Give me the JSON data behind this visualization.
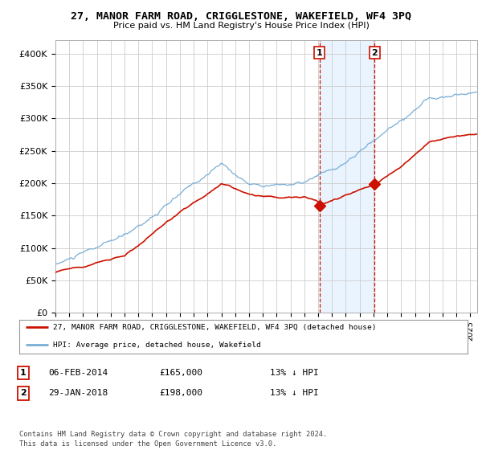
{
  "title": "27, MANOR FARM ROAD, CRIGGLESTONE, WAKEFIELD, WF4 3PQ",
  "subtitle": "Price paid vs. HM Land Registry's House Price Index (HPI)",
  "ylim": [
    0,
    420000
  ],
  "yticks": [
    0,
    50000,
    100000,
    150000,
    200000,
    250000,
    300000,
    350000,
    400000
  ],
  "ytick_labels": [
    "£0",
    "£50K",
    "£100K",
    "£150K",
    "£200K",
    "£250K",
    "£300K",
    "£350K",
    "£400K"
  ],
  "background_color": "#ffffff",
  "plot_bg_color": "#ffffff",
  "grid_color": "#cccccc",
  "hpi_color": "#7aaed6",
  "price_color": "#cc1100",
  "sale1_date": 2014.09,
  "sale1_price": 165000,
  "sale1_label": "1",
  "sale2_date": 2018.08,
  "sale2_price": 198000,
  "sale2_label": "2",
  "legend_line1": "27, MANOR FARM ROAD, CRIGGLESTONE, WAKEFIELD, WF4 3PQ (detached house)",
  "legend_line2": "HPI: Average price, detached house, Wakefield",
  "table_row1": [
    "1",
    "06-FEB-2014",
    "£165,000",
    "13% ↓ HPI"
  ],
  "table_row2": [
    "2",
    "29-JAN-2018",
    "£198,000",
    "13% ↓ HPI"
  ],
  "footnote": "Contains HM Land Registry data © Crown copyright and database right 2024.\nThis data is licensed under the Open Government Licence v3.0.",
  "shade_x1": 2014.09,
  "shade_x2": 2018.08,
  "xmin": 1995.0,
  "xmax": 2025.5
}
